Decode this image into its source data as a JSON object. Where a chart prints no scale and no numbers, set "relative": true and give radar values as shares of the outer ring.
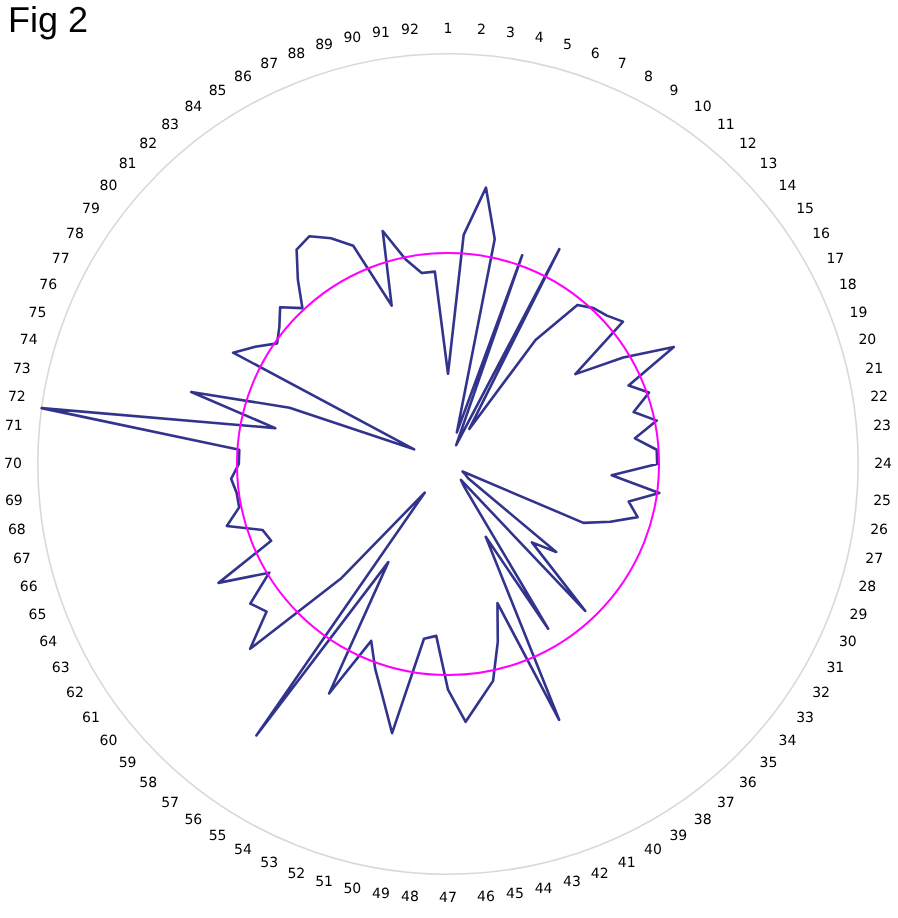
{
  "chart_data": {
    "type": "radar",
    "title": "Fig 2",
    "relative": true,
    "grid": true,
    "legend": false,
    "marker": "none",
    "categories": [
      "1",
      "2",
      "3",
      "4",
      "5",
      "6",
      "7",
      "8",
      "9",
      "10",
      "11",
      "12",
      "13",
      "14",
      "15",
      "16",
      "17",
      "18",
      "19",
      "20",
      "21",
      "22",
      "23",
      "24",
      "25",
      "26",
      "27",
      "28",
      "29",
      "30",
      "31",
      "32",
      "33",
      "34",
      "35",
      "36",
      "37",
      "38",
      "39",
      "40",
      "41",
      "42",
      "43",
      "44",
      "45",
      "46",
      "47",
      "48",
      "49",
      "50",
      "51",
      "52",
      "53",
      "54",
      "55",
      "56",
      "57",
      "58",
      "59",
      "60",
      "61",
      "62",
      "63",
      "64",
      "65",
      "66",
      "67",
      "68",
      "69",
      "70",
      "71",
      "72",
      "73",
      "74",
      "75",
      "76",
      "77",
      "78",
      "79",
      "80",
      "81",
      "82",
      "83",
      "84",
      "85",
      "86",
      "87",
      "88",
      "89",
      "90",
      "91",
      "92"
    ],
    "series": [
      {
        "color": "#31338c",
        "values": [
          0.22,
          0.56,
          0.68,
          0.56,
          0.08,
          0.54,
          0.05,
          0.59,
          0.1,
          0.37,
          0.5,
          0.52,
          0.53,
          0.55,
          0.38,
          0.5,
          0.62,
          0.48,
          0.52,
          0.47,
          0.52,
          0.46,
          0.51,
          0.51,
          0.4,
          0.52,
          0.45,
          0.48,
          0.42,
          0.36,
          0.04,
          0.05,
          0.06,
          0.34,
          0.28,
          0.49,
          0.05,
          0.07,
          0.47,
          0.2,
          0.68,
          0.36,
          0.45,
          0.54,
          0.58,
          0.63,
          0.55,
          0.42,
          0.43,
          0.67,
          0.59,
          0.53,
          0.47,
          0.63,
          0.28,
          0.81,
          0.09,
          0.38,
          0.66,
          0.57,
          0.59,
          0.51,
          0.63,
          0.47,
          0.48,
          0.56,
          0.52,
          0.52,
          0.53,
          0.51,
          0.51,
          1,
          0.43,
          0.65,
          0.41,
          0.09,
          0.59,
          0.55,
          0.51,
          0.53,
          0.56,
          0.52,
          0.58,
          0.64,
          0.65,
          0.62,
          0.58,
          0.41,
          0.59,
          0.51,
          0.47,
          0.47
        ]
      }
    ]
  }
}
